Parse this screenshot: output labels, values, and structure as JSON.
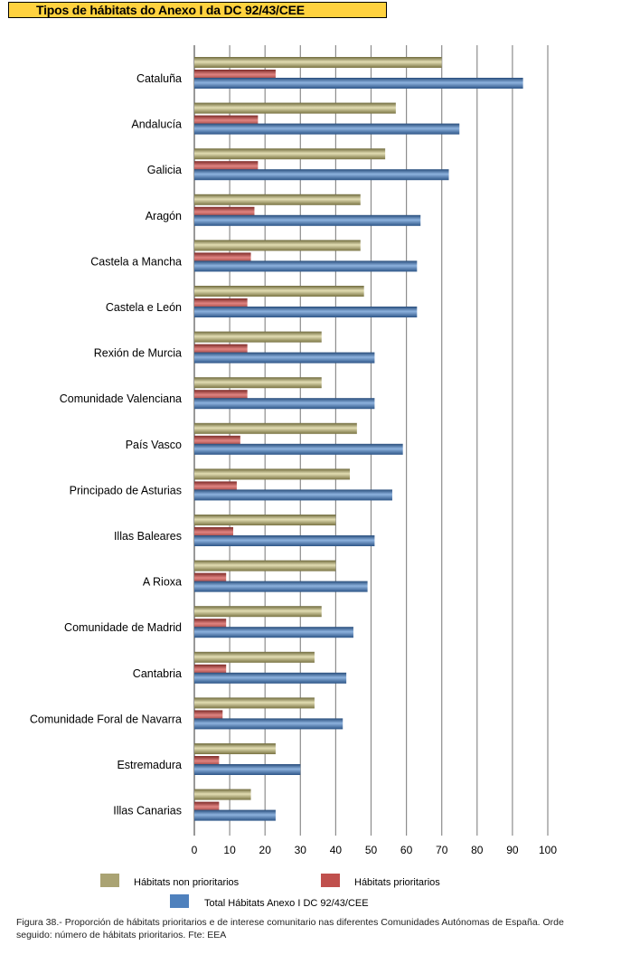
{
  "header": {
    "title": "Tipos de hábitats do Anexo I da DC 92/43/CEE"
  },
  "chart_data": {
    "type": "bar",
    "orientation": "horizontal",
    "categories": [
      "Cataluña",
      "Andalucía",
      "Galicia",
      "Aragón",
      "Castela a Mancha",
      "Castela e León",
      "Rexión de Murcia",
      "Comunidade Valenciana",
      "País Vasco",
      "Principado de Asturias",
      "Illas Baleares",
      "A Rioxa",
      "Comunidade de Madrid",
      "Cantabria",
      "Comunidade Foral de Navarra",
      "Estremadura",
      "Illas Canarias"
    ],
    "series": [
      {
        "name": "Hábitats non prioritarios",
        "color": "#aaa373",
        "values": [
          70,
          57,
          54,
          47,
          47,
          48,
          36,
          36,
          46,
          44,
          40,
          40,
          36,
          34,
          34,
          23,
          16
        ]
      },
      {
        "name": "Hábitats prioritarios",
        "color": "#c0504d",
        "values": [
          23,
          18,
          18,
          17,
          16,
          15,
          15,
          15,
          13,
          12,
          11,
          9,
          9,
          9,
          8,
          7,
          7
        ]
      },
      {
        "name": "Total Hábitats Anexo I DC 92/43/CEE",
        "color": "#4f81bd",
        "values": [
          93,
          75,
          72,
          64,
          63,
          63,
          51,
          51,
          59,
          56,
          51,
          49,
          45,
          43,
          42,
          30,
          23
        ]
      }
    ],
    "xlim": [
      0,
      100
    ],
    "xticks": [
      "0",
      "10",
      "20",
      "30",
      "40",
      "50",
      "60",
      "70",
      "80",
      "90",
      "100"
    ],
    "grid": true,
    "legend": "bottom"
  },
  "caption": "Figura 38.- Proporción de hábitats prioritarios e de interese comunitario nas diferentes Comunidades Autónomas de España. Orde seguido: número de hábitats prioritarios. Fte: EEA"
}
